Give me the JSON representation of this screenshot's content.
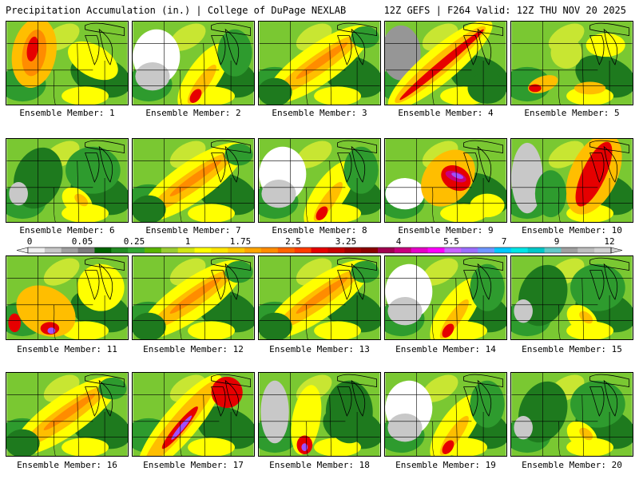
{
  "header": {
    "title": "Precipitation Accumulation (in.) | College of DuPage NEXLAB",
    "run_info": "12Z GEFS | F264 Valid: 12Z THU NOV 20 2025"
  },
  "panels": [
    {
      "label": "Ensemble Member: 1",
      "style": "nw-blob"
    },
    {
      "label": "Ensemble Member: 2",
      "style": "white-west"
    },
    {
      "label": "Ensemble Member: 3",
      "style": "diag-band"
    },
    {
      "label": "Ensemble Member: 4",
      "style": "strong-diag"
    },
    {
      "label": "Ensemble Member: 5",
      "style": "scattered"
    },
    {
      "label": "Ensemble Member: 6",
      "style": "green-mostly"
    },
    {
      "label": "Ensemble Member: 7",
      "style": "diag-band"
    },
    {
      "label": "Ensemble Member: 8",
      "style": "white-west"
    },
    {
      "label": "Ensemble Member: 9",
      "style": "purple-center"
    },
    {
      "label": "Ensemble Member: 10",
      "style": "east-red"
    },
    {
      "label": "Ensemble Member: 11",
      "style": "sw-purple"
    },
    {
      "label": "Ensemble Member: 12",
      "style": "diag-band"
    },
    {
      "label": "Ensemble Member: 13",
      "style": "diag-band"
    },
    {
      "label": "Ensemble Member: 14",
      "style": "white-west"
    },
    {
      "label": "Ensemble Member: 15",
      "style": "green-mostly"
    },
    {
      "label": "Ensemble Member: 16",
      "style": "diag-band"
    },
    {
      "label": "Ensemble Member: 17",
      "style": "purple-streak"
    },
    {
      "label": "Ensemble Member: 18",
      "style": "south-purple"
    },
    {
      "label": "Ensemble Member: 19",
      "style": "white-west"
    },
    {
      "label": "Ensemble Member: 20",
      "style": "green-mostly"
    }
  ],
  "colorbar": {
    "labels": [
      "0",
      "0.05",
      "0.25",
      "1",
      "1.75",
      "2.5",
      "3.25",
      "4",
      "5.5",
      "7",
      "9",
      "12"
    ],
    "colors": [
      "#f0f0f0",
      "#c8c8c8",
      "#a0a0a0",
      "#7d7d7d",
      "#006400",
      "#228b22",
      "#32a532",
      "#5ab400",
      "#9acd32",
      "#d2e614",
      "#ffff00",
      "#ffe600",
      "#ffc800",
      "#ffa500",
      "#ff8c00",
      "#ff6400",
      "#ff3c00",
      "#e60000",
      "#c80000",
      "#a00000",
      "#8b0000",
      "#a00050",
      "#c8007d",
      "#e600c8",
      "#ff00ff",
      "#c864ff",
      "#9b6eff",
      "#6e96ff",
      "#00c8ff",
      "#00e6e6",
      "#00c8c8",
      "#64c8c8",
      "#a0a0a0",
      "#bebebe",
      "#d2d2d2"
    ]
  },
  "map_colors": {
    "white": "#ffffff",
    "light_gray": "#c8c8c8",
    "gray": "#969696",
    "dark_green": "#1e7a1e",
    "green": "#2e9b2e",
    "light_green": "#7ac832",
    "yellow_green": "#c8e632",
    "yellow": "#ffff00",
    "orange": "#ffbe00",
    "dark_orange": "#ff8c00",
    "red": "#e60000",
    "dark_red": "#a00000",
    "magenta": "#c8007d",
    "purple": "#a050ff"
  }
}
